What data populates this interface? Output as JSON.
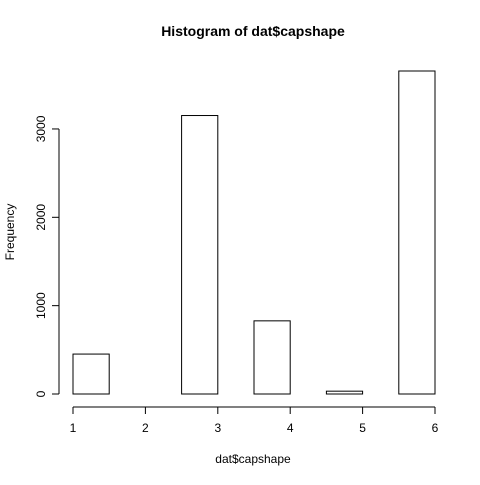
{
  "chart_data": {
    "type": "bar",
    "title": "Histogram of dat$capshape",
    "xlabel": "dat$capshape",
    "ylabel": "Frequency",
    "bins": [
      {
        "x0": 1.0,
        "x1": 1.5,
        "value": 452
      },
      {
        "x0": 1.5,
        "x1": 2.0,
        "value": 0
      },
      {
        "x0": 2.0,
        "x1": 2.5,
        "value": 0
      },
      {
        "x0": 2.5,
        "x1": 3.0,
        "value": 3152
      },
      {
        "x0": 3.0,
        "x1": 3.5,
        "value": 0
      },
      {
        "x0": 3.5,
        "x1": 4.0,
        "value": 828
      },
      {
        "x0": 4.0,
        "x1": 4.5,
        "value": 0
      },
      {
        "x0": 4.5,
        "x1": 5.0,
        "value": 32
      },
      {
        "x0": 5.0,
        "x1": 5.5,
        "value": 0
      },
      {
        "x0": 5.5,
        "x1": 6.0,
        "value": 3656
      }
    ],
    "xticks": [
      "1",
      "2",
      "3",
      "4",
      "5",
      "6"
    ],
    "xtick_values": [
      1,
      2,
      3,
      4,
      5,
      6
    ],
    "yticks": [
      "0",
      "1000",
      "2000",
      "3000"
    ],
    "ytick_values": [
      0,
      1000,
      2000,
      3000
    ],
    "xlim": [
      1,
      6
    ],
    "ylim": [
      0,
      3656
    ],
    "grid": false,
    "legend": "none",
    "colors": {
      "bar_fill": "#ffffff",
      "bar_stroke": "#000000",
      "background": "#ffffff"
    }
  }
}
